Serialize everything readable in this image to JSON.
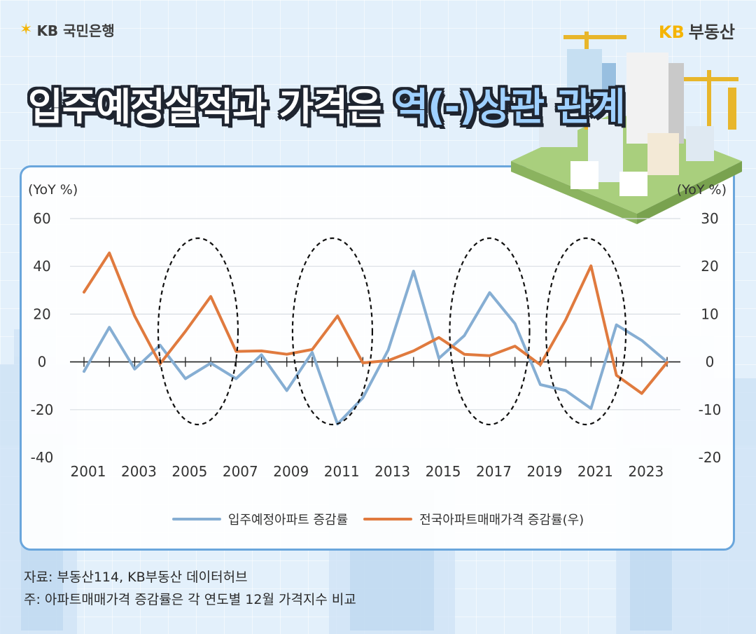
{
  "brand": {
    "left_logo": "KB 국민은행",
    "right_prefix": "KB",
    "right_name": "부동산"
  },
  "headline": {
    "part1": "입주예정실적과 가격은 ",
    "part2": "역(-)상관 관계"
  },
  "colors": {
    "blue_series": "#86aed3",
    "orange_series": "#e07a3e",
    "title_highlight": "#9fd0ff",
    "panel_border": "#6aa6dc"
  },
  "chart_data": {
    "type": "line",
    "title": "",
    "ylabel_left": "(YoY %)",
    "ylabel_right": "(YoY %)",
    "ylim_left": [
      -40,
      60
    ],
    "ylim_right": [
      -20,
      30
    ],
    "yticks_left": [
      "60",
      "40",
      "20",
      "0",
      "-20",
      "-40"
    ],
    "yticks_right": [
      "30",
      "20",
      "10",
      "0",
      "-10",
      "-20"
    ],
    "x": [
      2001,
      2002,
      2003,
      2004,
      2005,
      2006,
      2007,
      2008,
      2009,
      2010,
      2011,
      2012,
      2013,
      2014,
      2015,
      2016,
      2017,
      2018,
      2019,
      2020,
      2021,
      2022,
      2023,
      2024
    ],
    "xtick_labels": [
      "2001",
      "2003",
      "2005",
      "2007",
      "2009",
      "2011",
      "2013",
      "2015",
      "2017",
      "2019",
      "2021",
      "2023"
    ],
    "grid": true,
    "legend_position": "bottom",
    "series": [
      {
        "name": "입주예정아파트 증감률",
        "axis": "left",
        "color": "#86aed3",
        "values": [
          -4,
          14.5,
          -3,
          7,
          -7,
          -0.5,
          -7,
          3,
          -12,
          4,
          -26,
          -15,
          5,
          38,
          1.5,
          11,
          29,
          16,
          -9.5,
          -12,
          -19.5,
          15.5,
          9,
          0
        ]
      },
      {
        "name": "전국아파트매매가격 증감률(우)",
        "axis": "right",
        "color": "#e07a3e",
        "values": [
          14.6,
          22.8,
          9.6,
          -0.4,
          6.4,
          13.7,
          2.2,
          2.3,
          1.6,
          2.6,
          9.6,
          -0.2,
          0.3,
          2.3,
          5.1,
          1.6,
          1.3,
          3.3,
          -0.6,
          8.8,
          20.1,
          -2.8,
          -6.6,
          -0.1
        ]
      }
    ],
    "annotations": {
      "dashed_ellipses_center_years": [
        2005.5,
        2010.8,
        2017,
        2020.8
      ]
    }
  },
  "footnote": {
    "source": "자료: 부동산114, KB부동산 데이터허브",
    "note": "주: 아파트매매가격 증감률은 각 연도별 12월 가격지수 비교"
  }
}
